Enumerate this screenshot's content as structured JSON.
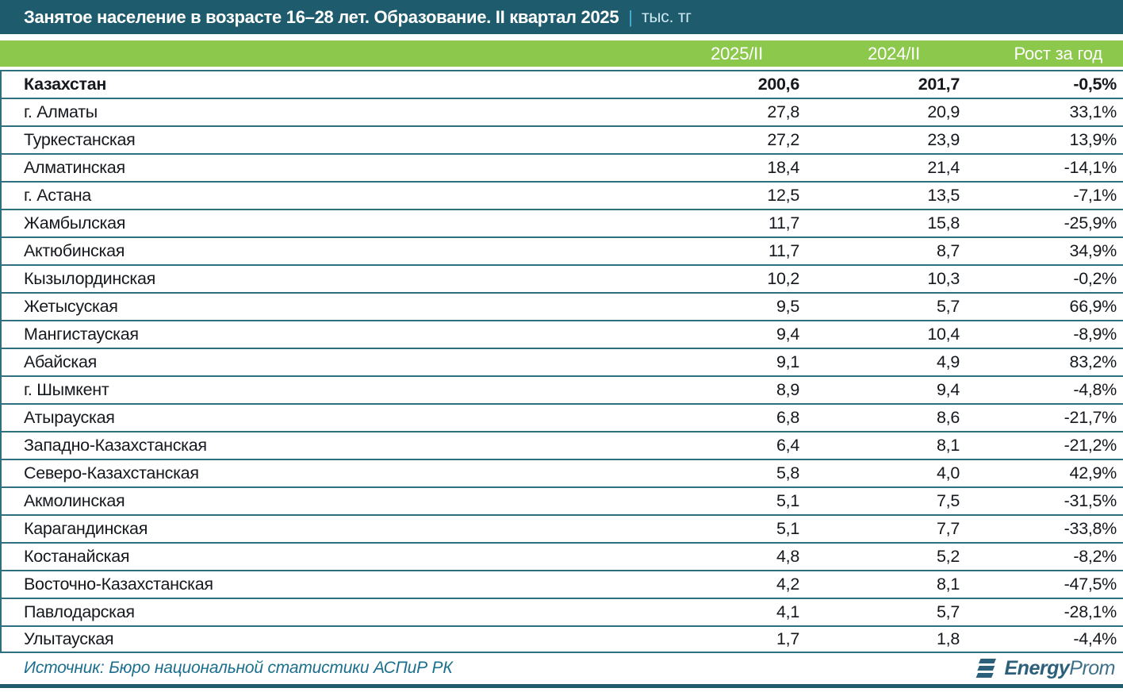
{
  "title": {
    "main": "Занятое население в возрасте 16–28 лет. Образование. II квартал 2025",
    "separator": "|",
    "unit": "тыс. тг"
  },
  "chart_data": {
    "type": "table",
    "title": "Занятое население в возрасте 16–28 лет. Образование. II квартал 2025",
    "unit": "тыс. тг",
    "columns": [
      "2025/II",
      "2024/II",
      "Рост за год"
    ],
    "rows": [
      [
        "Казахстан",
        200.6,
        201.7,
        -0.5
      ],
      [
        "г. Алматы",
        27.8,
        20.9,
        33.1
      ],
      [
        "Туркестанская",
        27.2,
        23.9,
        13.9
      ],
      [
        "Алматинская",
        18.4,
        21.4,
        -14.1
      ],
      [
        "г. Астана",
        12.5,
        13.5,
        -7.1
      ],
      [
        "Жамбылская",
        11.7,
        15.8,
        -25.9
      ],
      [
        "Актюбинская",
        11.7,
        8.7,
        34.9
      ],
      [
        "Кызылординская",
        10.2,
        10.3,
        -0.2
      ],
      [
        "Жетысуская",
        9.5,
        5.7,
        66.9
      ],
      [
        "Мангистауская",
        9.4,
        10.4,
        -8.9
      ],
      [
        "Абайская",
        9.1,
        4.9,
        83.2
      ],
      [
        "г. Шымкент",
        8.9,
        9.4,
        -4.8
      ],
      [
        "Атырауская",
        6.8,
        8.6,
        -21.7
      ],
      [
        "Западно-Казахстанская",
        6.4,
        8.1,
        -21.2
      ],
      [
        "Северо-Казахстанская",
        5.8,
        4.0,
        42.9
      ],
      [
        "Акмолинская",
        5.1,
        7.5,
        -31.5
      ],
      [
        "Карагандинская",
        5.1,
        7.7,
        -33.8
      ],
      [
        "Костанайская",
        4.8,
        5.2,
        -8.2
      ],
      [
        "Восточно-Казахстанская",
        4.2,
        8.1,
        -47.5
      ],
      [
        "Павлодарская",
        4.1,
        5.7,
        -28.1
      ],
      [
        "Улытауская",
        1.7,
        1.8,
        -4.4
      ]
    ]
  },
  "footer": {
    "source": "Источник: Бюро национальной статистики АСПиР РК",
    "logo_energy": "Energy",
    "logo_prom": "Prom"
  },
  "colors": {
    "title_bar": "#1e5b6d",
    "header_green": "#8cc84b",
    "grid_line": "#2e6f80",
    "row_text": "#15191e",
    "title_text": "#ffffff",
    "title_separator": "#47b2d9",
    "title_unit": "#cfe9f4",
    "source_text": "#1b6f8e",
    "logo_teal": "#2b5f7a",
    "bottom_bar": "#1e5b6d"
  },
  "icons": {
    "logo_icon": "energyprom-stacked-bars-icon"
  }
}
